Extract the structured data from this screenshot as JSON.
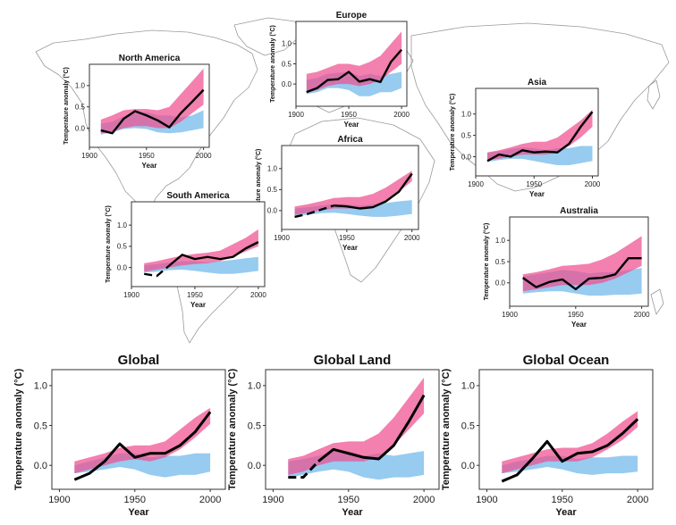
{
  "colors": {
    "observed": "#000000",
    "natural_band": "#6fb7ea",
    "natural_plus_anthro_band": "#ef4f8f",
    "overlap": "#8a6bbf",
    "map_outline": "#9a9a9a",
    "frame": "#333333"
  },
  "chart_data": [
    {
      "id": "north-america",
      "type": "area",
      "title": "North America",
      "xlabel": "Year",
      "ylabel": "Temperature anomaly (°C)",
      "xlim": [
        1900,
        2005
      ],
      "ylim": [
        -0.45,
        1.5
      ],
      "xticks": [
        1900,
        1950,
        2000
      ],
      "yticks": [
        0.0,
        0.5,
        1.0
      ],
      "xtick_labels": [
        "1900",
        "1950",
        "2000"
      ],
      "ytick_labels": [
        "0.0",
        "0.5",
        "1.0"
      ],
      "years": [
        1910,
        1920,
        1930,
        1940,
        1950,
        1960,
        1970,
        1980,
        1990,
        2000
      ],
      "observed": [
        -0.05,
        -0.12,
        0.22,
        0.4,
        0.3,
        0.18,
        0.02,
        0.35,
        0.62,
        0.9
      ],
      "natural_band": {
        "low": [
          -0.15,
          -0.1,
          -0.02,
          0.0,
          -0.02,
          -0.1,
          -0.12,
          -0.1,
          -0.05,
          0.0
        ],
        "high": [
          0.1,
          0.15,
          0.28,
          0.35,
          0.38,
          0.3,
          0.3,
          0.25,
          0.3,
          0.42
        ]
      },
      "natural_plus_anthro_band": {
        "low": [
          -0.12,
          -0.08,
          0.0,
          0.05,
          0.05,
          0.0,
          0.0,
          0.15,
          0.35,
          0.55
        ],
        "high": [
          0.2,
          0.3,
          0.42,
          0.45,
          0.45,
          0.42,
          0.5,
          0.8,
          1.1,
          1.4
        ]
      },
      "observed_dashed_until": null
    },
    {
      "id": "europe",
      "type": "area",
      "title": "Europe",
      "xlabel": "Year",
      "ylabel": "Temperature anomaly (°C)",
      "xlim": [
        1900,
        2005
      ],
      "ylim": [
        -0.55,
        1.55
      ],
      "xticks": [
        1900,
        1950,
        2000
      ],
      "yticks": [
        0.0,
        0.5,
        1.0
      ],
      "xtick_labels": [
        "1900",
        "1950",
        "2000"
      ],
      "ytick_labels": [
        "0.0",
        "0.5",
        "1.0"
      ],
      "years": [
        1910,
        1920,
        1930,
        1940,
        1950,
        1960,
        1970,
        1980,
        1990,
        2000
      ],
      "observed": [
        -0.2,
        -0.1,
        0.1,
        0.12,
        0.3,
        0.06,
        0.12,
        0.05,
        0.55,
        0.85
      ],
      "natural_band": {
        "low": [
          -0.25,
          -0.2,
          -0.1,
          -0.1,
          -0.15,
          -0.3,
          -0.3,
          -0.2,
          -0.2,
          -0.1
        ],
        "high": [
          0.1,
          0.15,
          0.25,
          0.28,
          0.3,
          0.2,
          0.25,
          0.2,
          0.25,
          0.3
        ]
      },
      "natural_plus_anthro_band": {
        "low": [
          -0.22,
          -0.15,
          -0.05,
          0.0,
          0.0,
          -0.05,
          0.0,
          0.1,
          0.3,
          0.5
        ],
        "high": [
          0.25,
          0.3,
          0.4,
          0.5,
          0.5,
          0.45,
          0.55,
          0.7,
          1.0,
          1.3
        ]
      },
      "observed_dashed_until": null
    },
    {
      "id": "asia",
      "type": "area",
      "title": "Asia",
      "xlabel": "Year",
      "ylabel": "Temperature anomaly (°C)",
      "xlim": [
        1900,
        2005
      ],
      "ylim": [
        -0.45,
        1.6
      ],
      "xticks": [
        1900,
        1950,
        2000
      ],
      "yticks": [
        0.0,
        0.5,
        1.0
      ],
      "xtick_labels": [
        "1900",
        "1950",
        "2000"
      ],
      "ytick_labels": [
        "0.0",
        "0.5",
        "1.0"
      ],
      "years": [
        1910,
        1920,
        1930,
        1940,
        1950,
        1960,
        1970,
        1980,
        1990,
        2000
      ],
      "observed": [
        -0.1,
        0.05,
        0.0,
        0.15,
        0.1,
        0.12,
        0.1,
        0.3,
        0.7,
        1.05
      ],
      "natural_band": {
        "low": [
          -0.12,
          -0.08,
          -0.05,
          -0.05,
          -0.1,
          -0.15,
          -0.2,
          -0.2,
          -0.15,
          -0.1
        ],
        "high": [
          0.1,
          0.12,
          0.18,
          0.22,
          0.2,
          0.15,
          0.2,
          0.2,
          0.25,
          0.25
        ]
      },
      "natural_plus_anthro_band": {
        "low": [
          -0.08,
          -0.05,
          0.0,
          0.05,
          0.05,
          0.05,
          0.1,
          0.25,
          0.45,
          0.7
        ],
        "high": [
          0.1,
          0.15,
          0.22,
          0.3,
          0.35,
          0.35,
          0.45,
          0.65,
          0.85,
          1.1
        ]
      },
      "observed_dashed_until": null
    },
    {
      "id": "africa",
      "type": "area",
      "title": "Africa",
      "xlabel": "Year",
      "ylabel": "Temperature anomaly (°C)",
      "xlim": [
        1900,
        2005
      ],
      "ylim": [
        -0.45,
        1.55
      ],
      "xticks": [
        1900,
        1950,
        2000
      ],
      "yticks": [
        0.0,
        0.5,
        1.0
      ],
      "xtick_labels": [
        "1900",
        "1950",
        "2000"
      ],
      "ytick_labels": [
        "0.0",
        "0.5",
        "1.0"
      ],
      "years": [
        1910,
        1920,
        1930,
        1940,
        1950,
        1960,
        1970,
        1980,
        1990,
        2000
      ],
      "observed": [
        -0.15,
        -0.08,
        0.02,
        0.12,
        0.1,
        0.05,
        0.08,
        0.22,
        0.45,
        0.88
      ],
      "natural_band": {
        "low": [
          -0.12,
          -0.1,
          -0.06,
          -0.05,
          -0.08,
          -0.12,
          -0.15,
          -0.15,
          -0.12,
          -0.08
        ],
        "high": [
          0.05,
          0.08,
          0.12,
          0.15,
          0.15,
          0.12,
          0.15,
          0.18,
          0.22,
          0.25
        ]
      },
      "natural_plus_anthro_band": {
        "low": [
          -0.1,
          -0.05,
          0.0,
          0.05,
          0.05,
          0.05,
          0.1,
          0.25,
          0.45,
          0.7
        ],
        "high": [
          0.1,
          0.15,
          0.22,
          0.3,
          0.32,
          0.32,
          0.4,
          0.55,
          0.75,
          0.95
        ]
      },
      "observed_dashed_until": 1940
    },
    {
      "id": "south-america",
      "type": "area",
      "title": "South America",
      "xlabel": "Year",
      "ylabel": "Temperature anomaly (°C)",
      "xlim": [
        1900,
        2005
      ],
      "ylim": [
        -0.45,
        1.55
      ],
      "xticks": [
        1900,
        1950,
        2000
      ],
      "yticks": [
        0.0,
        0.5,
        1.0
      ],
      "xtick_labels": [
        "1900",
        "1950",
        "2000"
      ],
      "ytick_labels": [
        "0.0",
        "0.5",
        "1.0"
      ],
      "years": [
        1910,
        1920,
        1930,
        1940,
        1950,
        1960,
        1970,
        1980,
        1990,
        2000
      ],
      "observed": [
        -0.15,
        -0.2,
        0.05,
        0.3,
        0.2,
        0.25,
        0.2,
        0.25,
        0.45,
        0.6
      ],
      "natural_band": {
        "low": [
          -0.12,
          -0.1,
          -0.06,
          -0.05,
          -0.08,
          -0.12,
          -0.15,
          -0.15,
          -0.12,
          -0.08
        ],
        "high": [
          0.05,
          0.08,
          0.12,
          0.15,
          0.15,
          0.12,
          0.15,
          0.18,
          0.22,
          0.25
        ]
      },
      "natural_plus_anthro_band": {
        "low": [
          -0.1,
          -0.05,
          0.0,
          0.05,
          0.08,
          0.1,
          0.15,
          0.25,
          0.38,
          0.5
        ],
        "high": [
          0.1,
          0.15,
          0.22,
          0.28,
          0.32,
          0.35,
          0.4,
          0.55,
          0.7,
          0.9
        ]
      },
      "observed_dashed_until": 1930
    },
    {
      "id": "australia",
      "type": "area",
      "title": "Australia",
      "xlabel": "Year",
      "ylabel": "Temperature anomaly (°C)",
      "xlim": [
        1900,
        2005
      ],
      "ylim": [
        -0.55,
        1.55
      ],
      "xticks": [
        1900,
        1950,
        2000
      ],
      "yticks": [
        0.0,
        0.5,
        1.0
      ],
      "xtick_labels": [
        "1900",
        "1950",
        "2000"
      ],
      "ytick_labels": [
        "0.0",
        "0.5",
        "1.0"
      ],
      "years": [
        1910,
        1920,
        1930,
        1940,
        1950,
        1960,
        1970,
        1980,
        1990,
        2000
      ],
      "observed": [
        0.12,
        -0.1,
        0.02,
        0.08,
        -0.15,
        0.1,
        0.12,
        0.2,
        0.58,
        0.58
      ],
      "natural_band": {
        "low": [
          -0.25,
          -0.22,
          -0.2,
          -0.2,
          -0.25,
          -0.3,
          -0.3,
          -0.28,
          -0.28,
          -0.25
        ],
        "high": [
          0.15,
          0.2,
          0.25,
          0.3,
          0.28,
          0.22,
          0.25,
          0.25,
          0.3,
          0.35
        ]
      },
      "natural_plus_anthro_band": {
        "low": [
          -0.2,
          -0.15,
          -0.1,
          -0.05,
          -0.05,
          -0.05,
          0.0,
          0.1,
          0.25,
          0.4
        ],
        "high": [
          0.2,
          0.25,
          0.32,
          0.4,
          0.42,
          0.45,
          0.55,
          0.7,
          0.9,
          1.1
        ]
      },
      "observed_dashed_until": null
    },
    {
      "id": "global",
      "type": "area",
      "title": "Global",
      "xlabel": "Year",
      "ylabel": "Temperature anomaly (°C)",
      "xlim": [
        1895,
        2010
      ],
      "ylim": [
        -0.3,
        1.2
      ],
      "xticks": [
        1900,
        1950,
        2000
      ],
      "yticks": [
        0.0,
        0.5,
        1.0
      ],
      "xtick_labels": [
        "1900",
        "1950",
        "2000"
      ],
      "ytick_labels": [
        "0.0",
        "0.5",
        "1.0"
      ],
      "years": [
        1910,
        1920,
        1930,
        1940,
        1950,
        1960,
        1970,
        1980,
        1990,
        2000
      ],
      "observed": [
        -0.18,
        -0.1,
        0.05,
        0.27,
        0.1,
        0.15,
        0.15,
        0.25,
        0.42,
        0.67
      ],
      "natural_band": {
        "low": [
          -0.1,
          -0.08,
          -0.05,
          -0.02,
          -0.05,
          -0.12,
          -0.15,
          -0.12,
          -0.12,
          -0.08
        ],
        "high": [
          0.0,
          0.05,
          0.1,
          0.15,
          0.15,
          0.1,
          0.12,
          0.12,
          0.15,
          0.15
        ]
      },
      "natural_plus_anthro_band": {
        "low": [
          -0.1,
          -0.05,
          0.0,
          0.05,
          0.08,
          0.05,
          0.1,
          0.2,
          0.35,
          0.52
        ],
        "high": [
          0.05,
          0.1,
          0.15,
          0.22,
          0.25,
          0.25,
          0.3,
          0.45,
          0.6,
          0.72
        ]
      },
      "observed_dashed_until": null
    },
    {
      "id": "global-land",
      "type": "area",
      "title": "Global Land",
      "xlabel": "Year",
      "ylabel": "Temperature anomaly (°C)",
      "xlim": [
        1895,
        2010
      ],
      "ylim": [
        -0.3,
        1.2
      ],
      "xticks": [
        1900,
        1950,
        2000
      ],
      "yticks": [
        0.0,
        0.5,
        1.0
      ],
      "xtick_labels": [
        "1900",
        "1950",
        "2000"
      ],
      "ytick_labels": [
        "0.0",
        "0.5",
        "1.0"
      ],
      "years": [
        1910,
        1920,
        1930,
        1940,
        1950,
        1960,
        1970,
        1980,
        1990,
        2000
      ],
      "observed": [
        -0.15,
        -0.15,
        0.05,
        0.2,
        0.15,
        0.1,
        0.08,
        0.25,
        0.55,
        0.88
      ],
      "natural_band": {
        "low": [
          -0.15,
          -0.12,
          -0.08,
          -0.05,
          -0.08,
          -0.15,
          -0.18,
          -0.15,
          -0.15,
          -0.12
        ],
        "high": [
          0.05,
          0.08,
          0.12,
          0.18,
          0.18,
          0.12,
          0.15,
          0.12,
          0.15,
          0.18
        ]
      },
      "natural_plus_anthro_band": {
        "low": [
          -0.12,
          -0.08,
          0.0,
          0.05,
          0.05,
          0.05,
          0.1,
          0.25,
          0.45,
          0.65
        ],
        "high": [
          0.08,
          0.12,
          0.2,
          0.28,
          0.3,
          0.3,
          0.4,
          0.6,
          0.85,
          1.1
        ]
      },
      "observed_dashed_until": 1930
    },
    {
      "id": "global-ocean",
      "type": "area",
      "title": "Global Ocean",
      "xlabel": "Year",
      "ylabel": "Temperature anomaly (°C)",
      "xlim": [
        1895,
        2010
      ],
      "ylim": [
        -0.3,
        1.2
      ],
      "xticks": [
        1900,
        1950,
        2000
      ],
      "yticks": [
        0.0,
        0.5,
        1.0
      ],
      "xtick_labels": [
        "1900",
        "1950",
        "2000"
      ],
      "ytick_labels": [
        "0.0",
        "0.5",
        "1.0"
      ],
      "years": [
        1910,
        1920,
        1930,
        1940,
        1950,
        1960,
        1970,
        1980,
        1990,
        2000
      ],
      "observed": [
        -0.2,
        -0.12,
        0.08,
        0.3,
        0.05,
        0.15,
        0.17,
        0.25,
        0.4,
        0.58
      ],
      "natural_band": {
        "low": [
          -0.1,
          -0.08,
          -0.05,
          -0.02,
          -0.05,
          -0.1,
          -0.12,
          -0.1,
          -0.1,
          -0.08
        ],
        "high": [
          0.0,
          0.05,
          0.08,
          0.12,
          0.12,
          0.08,
          0.1,
          0.1,
          0.12,
          0.12
        ]
      },
      "natural_plus_anthro_band": {
        "low": [
          -0.1,
          -0.05,
          0.0,
          0.05,
          0.05,
          0.05,
          0.1,
          0.2,
          0.32,
          0.48
        ],
        "high": [
          0.05,
          0.1,
          0.15,
          0.2,
          0.22,
          0.22,
          0.28,
          0.4,
          0.55,
          0.68
        ]
      },
      "observed_dashed_until": null
    }
  ]
}
